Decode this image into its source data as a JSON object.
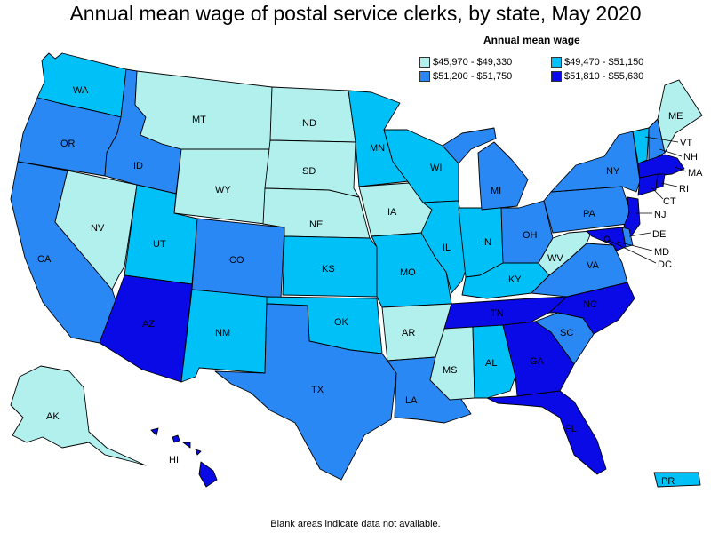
{
  "title": "Annual mean wage of postal service clerks, by state, May 2020",
  "legend": {
    "title": "Annual mean wage",
    "items": [
      {
        "label": "$45,970 - $49,330",
        "color": "#b2f0ee"
      },
      {
        "label": "$49,470 - $51,150",
        "color": "#00c0f8"
      },
      {
        "label": "$51,200 - $51,750",
        "color": "#2a88f4"
      },
      {
        "label": "$51,810 - $55,630",
        "color": "#0a0ae6"
      }
    ]
  },
  "footnote": "Blank areas indicate data not available.",
  "states": {
    "WA": {
      "label": "WA",
      "tier": 1
    },
    "OR": {
      "label": "OR",
      "tier": 2
    },
    "CA": {
      "label": "CA",
      "tier": 2
    },
    "NV": {
      "label": "NV",
      "tier": 0
    },
    "ID": {
      "label": "ID",
      "tier": 2
    },
    "MT": {
      "label": "MT",
      "tier": 0
    },
    "WY": {
      "label": "WY",
      "tier": 0
    },
    "UT": {
      "label": "UT",
      "tier": 1
    },
    "AZ": {
      "label": "AZ",
      "tier": 3
    },
    "CO": {
      "label": "CO",
      "tier": 2
    },
    "NM": {
      "label": "NM",
      "tier": 1
    },
    "ND": {
      "label": "ND",
      "tier": 0
    },
    "SD": {
      "label": "SD",
      "tier": 0
    },
    "NE": {
      "label": "NE",
      "tier": 0
    },
    "KS": {
      "label": "KS",
      "tier": 1
    },
    "OK": {
      "label": "OK",
      "tier": 1
    },
    "TX": {
      "label": "TX",
      "tier": 2
    },
    "MN": {
      "label": "MN",
      "tier": 1
    },
    "IA": {
      "label": "IA",
      "tier": 0
    },
    "MO": {
      "label": "MO",
      "tier": 1
    },
    "AR": {
      "label": "AR",
      "tier": 0
    },
    "LA": {
      "label": "LA",
      "tier": 2
    },
    "WI": {
      "label": "WI",
      "tier": 1
    },
    "IL": {
      "label": "IL",
      "tier": 1
    },
    "MI": {
      "label": "MI",
      "tier": 2
    },
    "IN": {
      "label": "IN",
      "tier": 1
    },
    "OH": {
      "label": "OH",
      "tier": 2
    },
    "KY": {
      "label": "KY",
      "tier": 1
    },
    "TN": {
      "label": "TN",
      "tier": 3
    },
    "MS": {
      "label": "MS",
      "tier": 0
    },
    "AL": {
      "label": "AL",
      "tier": 1
    },
    "GA": {
      "label": "GA",
      "tier": 3
    },
    "FL": {
      "label": "FL",
      "tier": 3
    },
    "SC": {
      "label": "SC",
      "tier": 2
    },
    "NC": {
      "label": "NC",
      "tier": 3
    },
    "VA": {
      "label": "VA",
      "tier": 2
    },
    "WV": {
      "label": "WV",
      "tier": 0
    },
    "PA": {
      "label": "PA",
      "tier": 2
    },
    "NY": {
      "label": "NY",
      "tier": 2
    },
    "VT": {
      "label": "VT",
      "tier": 1
    },
    "NH": {
      "label": "NH",
      "tier": 2
    },
    "ME": {
      "label": "ME",
      "tier": 0
    },
    "MA": {
      "label": "MA",
      "tier": 3
    },
    "RI": {
      "label": "RI",
      "tier": 3
    },
    "CT": {
      "label": "CT",
      "tier": 3
    },
    "NJ": {
      "label": "NJ",
      "tier": 3
    },
    "DE": {
      "label": "DE",
      "tier": 2
    },
    "MD": {
      "label": "MD",
      "tier": 3
    },
    "DC": {
      "label": "DC",
      "tier": 3
    },
    "AK": {
      "label": "AK",
      "tier": 0
    },
    "HI": {
      "label": "HI",
      "tier": 3
    },
    "PR": {
      "label": "PR",
      "tier": 1
    }
  }
}
